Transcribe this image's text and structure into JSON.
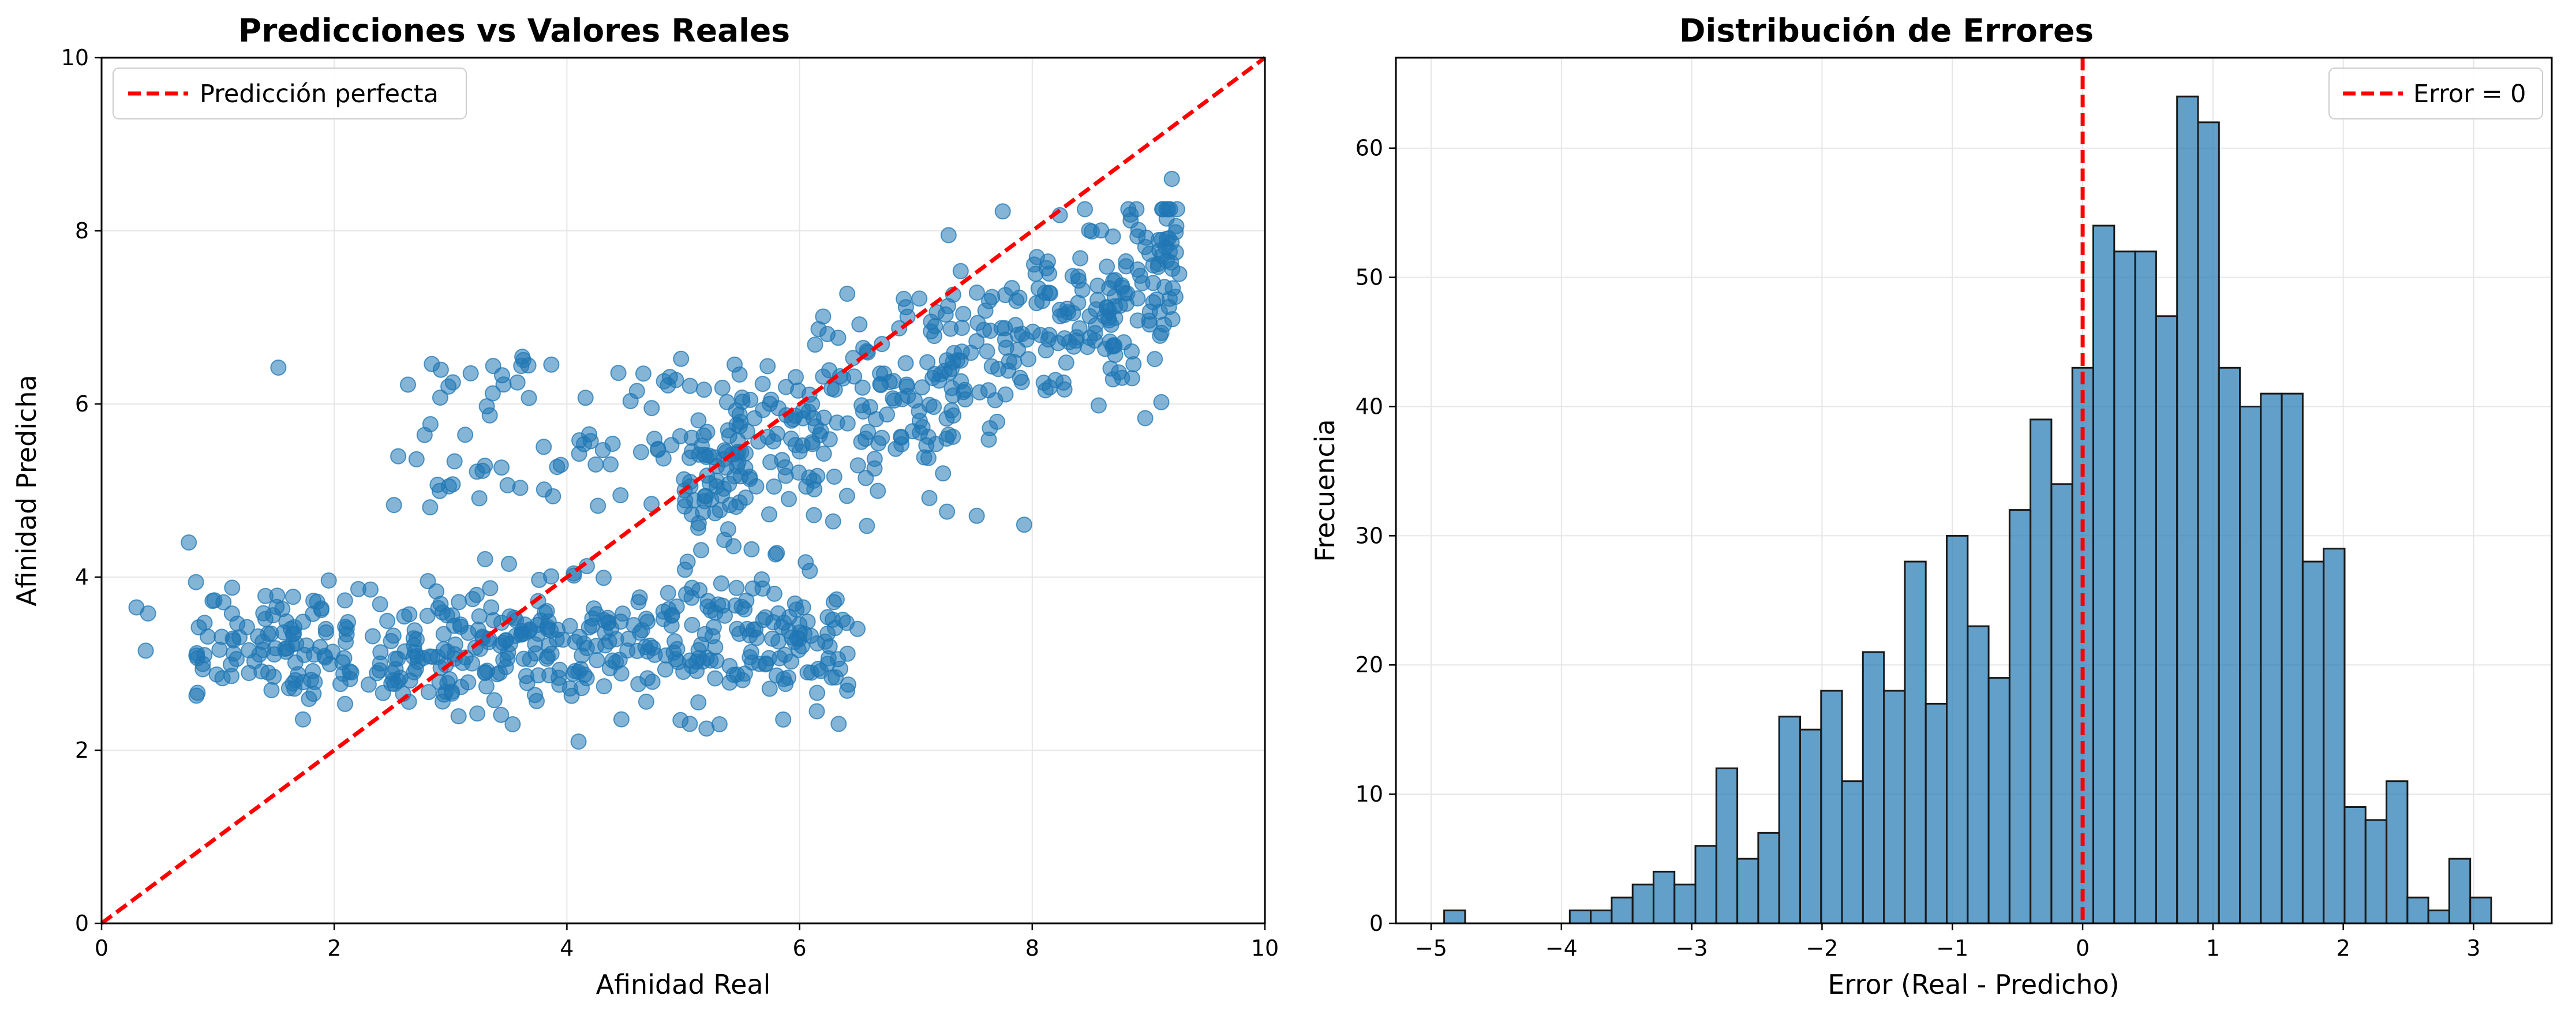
{
  "chart_data": [
    {
      "type": "scatter",
      "title": "Predicciones vs Valores Reales",
      "xlabel": "Afinidad Real",
      "ylabel": "Afinidad Predicha",
      "xlim": [
        0,
        10
      ],
      "ylim": [
        0,
        10
      ],
      "xticks": [
        0,
        2,
        4,
        6,
        8,
        10
      ],
      "yticks": [
        0,
        2,
        4,
        6,
        8,
        10
      ],
      "grid": true,
      "legend_position": "top-left",
      "colors": {
        "points": "#1f77b4",
        "reference_line": "#ff0000"
      },
      "reference_line": {
        "name": "Predicción perfecta",
        "x": [
          0,
          10
        ],
        "y": [
          0,
          10
        ],
        "style": "dashed"
      },
      "point_count": 1000,
      "clusters": [
        {
          "region": "low-real",
          "x_range": [
            0.8,
            3.5
          ],
          "y_center": 3.2,
          "share": 0.22
        },
        {
          "region": "mid-real-low-pred",
          "x_range": [
            3.5,
            6.5
          ],
          "y_center": 3.2,
          "share": 0.25
        },
        {
          "region": "mid-real-high-pred",
          "x_range": [
            2.5,
            5.5
          ],
          "y_center": 5.6,
          "share": 0.09
        },
        {
          "region": "high-real",
          "x_range": [
            5.0,
            9.3
          ],
          "y_center": 6.9,
          "share": 0.44
        }
      ],
      "outliers": [
        {
          "x": 0.3,
          "y": 3.65
        },
        {
          "x": 0.4,
          "y": 3.58
        },
        {
          "x": 0.38,
          "y": 3.15
        },
        {
          "x": 0.75,
          "y": 4.4
        },
        {
          "x": 1.52,
          "y": 6.42
        },
        {
          "x": 9.2,
          "y": 8.6
        },
        {
          "x": 4.1,
          "y": 2.1
        },
        {
          "x": 5.2,
          "y": 2.25
        }
      ]
    },
    {
      "type": "bar",
      "title": "Distribución de Errores",
      "xlabel": "Error (Real - Predicho)",
      "ylabel": "Frecuencia",
      "xlim": [
        -5.27,
        3.6
      ],
      "ylim": [
        0,
        67
      ],
      "xticks": [
        -5,
        -4,
        -3,
        -2,
        -1,
        0,
        1,
        2,
        3
      ],
      "yticks": [
        0,
        10,
        20,
        30,
        40,
        50,
        60
      ],
      "grid": true,
      "legend_position": "top-right",
      "colors": {
        "bars": "#1f77b4",
        "bar_edge": "#1a1a1a",
        "reference_line": "#ff0000"
      },
      "reference_line": {
        "name": "Error = 0",
        "x": 0,
        "style": "dashed"
      },
      "bin_start": -4.9,
      "bin_width": 0.1607,
      "values": [
        1,
        0,
        0,
        0,
        0,
        0,
        1,
        1,
        2,
        3,
        4,
        3,
        6,
        12,
        5,
        7,
        16,
        15,
        18,
        11,
        21,
        18,
        28,
        17,
        30,
        23,
        19,
        32,
        39,
        34,
        43,
        54,
        52,
        52,
        47,
        64,
        62,
        43,
        40,
        41,
        41,
        28,
        29,
        9,
        8,
        11,
        2,
        1,
        5,
        2
      ]
    }
  ]
}
